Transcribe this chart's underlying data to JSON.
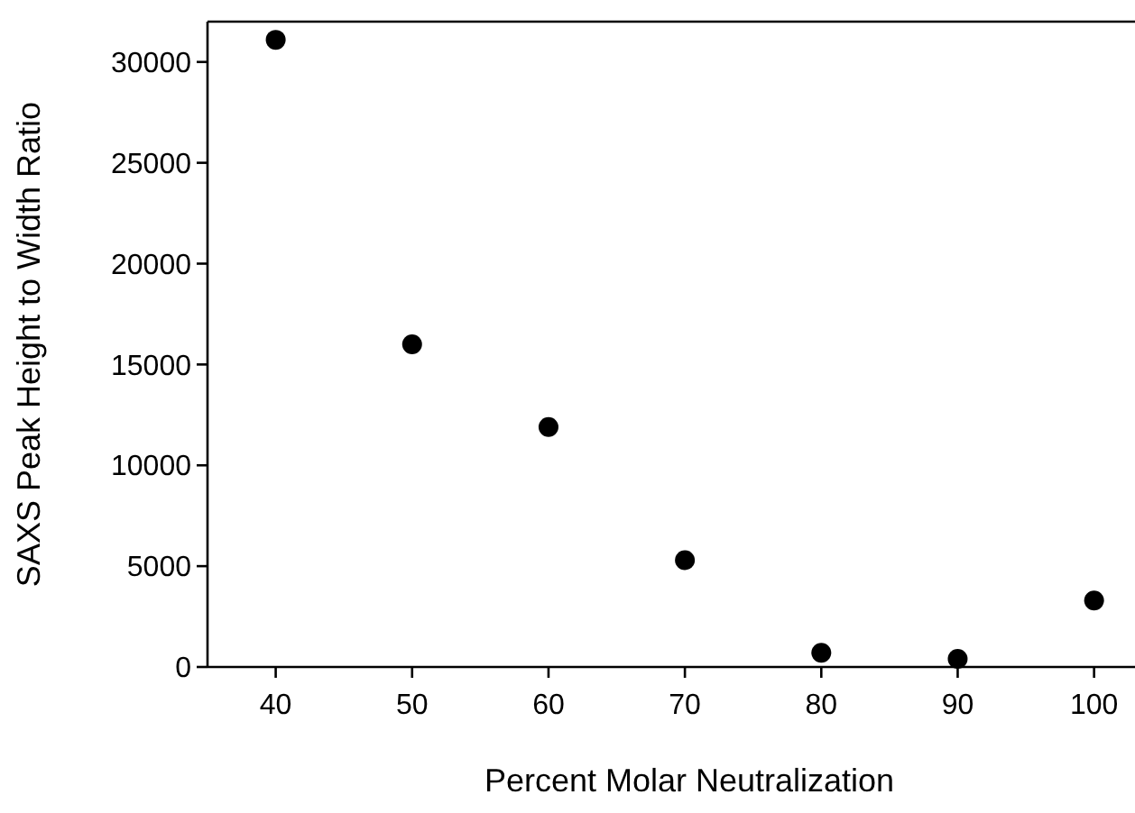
{
  "chart_data": {
    "type": "scatter",
    "xlabel": "Percent Molar Neutralization",
    "ylabel": "SAXS Peak Height to Width Ratio",
    "x": [
      40,
      50,
      60,
      70,
      80,
      90,
      100
    ],
    "values": [
      31100,
      16000,
      11900,
      5300,
      700,
      400,
      3300
    ],
    "color": "#000000",
    "marker": "circle",
    "xlim": [
      35,
      103
    ],
    "xticks": [
      40,
      50,
      60,
      70,
      80,
      90,
      100
    ],
    "ylim": [
      0,
      32000
    ],
    "yticks": [
      0,
      5000,
      10000,
      15000,
      20000,
      25000,
      30000
    ],
    "grid": false
  }
}
